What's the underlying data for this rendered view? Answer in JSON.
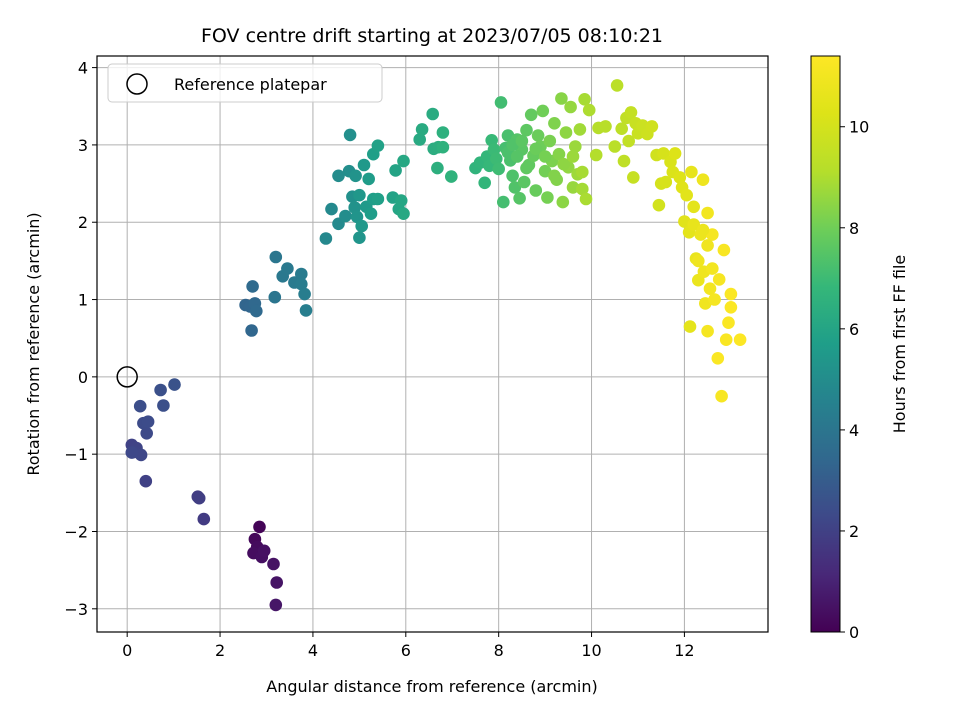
{
  "chart_data": {
    "type": "scatter",
    "title": "FOV centre drift starting at 2023/07/05 08:10:21",
    "xlabel": "Angular distance from reference (arcmin)",
    "ylabel": "Rotation from reference (arcmin)",
    "xlim": [
      -0.65,
      13.8
    ],
    "ylim": [
      -3.3,
      4.15
    ],
    "xticks": [
      0,
      2,
      4,
      6,
      8,
      10,
      12
    ],
    "yticks": [
      -3,
      -2,
      -1,
      0,
      1,
      2,
      3,
      4
    ],
    "grid": true,
    "legend": {
      "placement": "top-left",
      "entries": [
        "Reference platepar"
      ]
    },
    "reference_point": {
      "x": 0,
      "y": 0,
      "marker": "open-circle",
      "label": "Reference platepar"
    },
    "colorbar": {
      "label": "Hours from first FF file",
      "colormap": "viridis",
      "range": [
        0,
        11.4
      ],
      "ticks": [
        0,
        2,
        4,
        6,
        8,
        10
      ]
    },
    "points": [
      {
        "x": 2.85,
        "y": -1.94,
        "c": 0.1
      },
      {
        "x": 2.75,
        "y": -2.1,
        "c": 0.2
      },
      {
        "x": 2.8,
        "y": -2.2,
        "c": 0.3
      },
      {
        "x": 2.72,
        "y": -2.28,
        "c": 0.35
      },
      {
        "x": 2.9,
        "y": -2.33,
        "c": 0.4
      },
      {
        "x": 2.95,
        "y": -2.25,
        "c": 0.45
      },
      {
        "x": 3.15,
        "y": -2.42,
        "c": 0.5
      },
      {
        "x": 3.22,
        "y": -2.66,
        "c": 0.55
      },
      {
        "x": 3.2,
        "y": -2.95,
        "c": 0.6
      },
      {
        "x": 1.65,
        "y": -1.84,
        "c": 1.8
      },
      {
        "x": 1.52,
        "y": -1.55,
        "c": 1.85
      },
      {
        "x": 1.55,
        "y": -1.57,
        "c": 1.9
      },
      {
        "x": 0.4,
        "y": -1.35,
        "c": 2.0
      },
      {
        "x": 0.1,
        "y": -0.88,
        "c": 2.05
      },
      {
        "x": 0.2,
        "y": -0.92,
        "c": 2.1
      },
      {
        "x": 0.15,
        "y": -0.97,
        "c": 2.15
      },
      {
        "x": 0.3,
        "y": -1.01,
        "c": 2.2
      },
      {
        "x": 0.1,
        "y": -0.98,
        "c": 2.25
      },
      {
        "x": 0.42,
        "y": -0.73,
        "c": 2.3
      },
      {
        "x": 0.35,
        "y": -0.6,
        "c": 2.35
      },
      {
        "x": 0.45,
        "y": -0.58,
        "c": 2.4
      },
      {
        "x": 0.28,
        "y": -0.38,
        "c": 2.45
      },
      {
        "x": 0.78,
        "y": -0.37,
        "c": 2.5
      },
      {
        "x": 0.72,
        "y": -0.17,
        "c": 2.55
      },
      {
        "x": 1.02,
        "y": -0.1,
        "c": 2.6
      },
      {
        "x": 2.55,
        "y": 0.93,
        "c": 3.3
      },
      {
        "x": 2.65,
        "y": 0.91,
        "c": 3.35
      },
      {
        "x": 2.68,
        "y": 0.6,
        "c": 3.4
      },
      {
        "x": 2.75,
        "y": 0.95,
        "c": 3.45
      },
      {
        "x": 2.78,
        "y": 0.85,
        "c": 3.5
      },
      {
        "x": 2.7,
        "y": 1.17,
        "c": 3.55
      },
      {
        "x": 3.18,
        "y": 1.03,
        "c": 4.0
      },
      {
        "x": 3.2,
        "y": 1.55,
        "c": 4.05
      },
      {
        "x": 3.35,
        "y": 1.3,
        "c": 4.1
      },
      {
        "x": 3.45,
        "y": 1.4,
        "c": 4.15
      },
      {
        "x": 3.6,
        "y": 1.22,
        "c": 4.2
      },
      {
        "x": 3.75,
        "y": 1.33,
        "c": 4.25
      },
      {
        "x": 3.75,
        "y": 1.2,
        "c": 4.3
      },
      {
        "x": 3.82,
        "y": 1.07,
        "c": 4.35
      },
      {
        "x": 3.85,
        "y": 0.86,
        "c": 4.4
      },
      {
        "x": 4.28,
        "y": 1.79,
        "c": 4.8
      },
      {
        "x": 4.4,
        "y": 2.17,
        "c": 4.85
      },
      {
        "x": 4.55,
        "y": 1.98,
        "c": 4.9
      },
      {
        "x": 4.55,
        "y": 2.6,
        "c": 4.95
      },
      {
        "x": 4.7,
        "y": 2.08,
        "c": 5.0
      },
      {
        "x": 4.78,
        "y": 2.66,
        "c": 5.05
      },
      {
        "x": 4.8,
        "y": 3.13,
        "c": 5.1
      },
      {
        "x": 4.85,
        "y": 2.33,
        "c": 5.15
      },
      {
        "x": 4.9,
        "y": 2.19,
        "c": 5.2
      },
      {
        "x": 4.92,
        "y": 2.6,
        "c": 5.25
      },
      {
        "x": 4.95,
        "y": 2.07,
        "c": 5.3
      },
      {
        "x": 5.0,
        "y": 1.8,
        "c": 5.35
      },
      {
        "x": 5.0,
        "y": 2.35,
        "c": 5.4
      },
      {
        "x": 5.05,
        "y": 1.95,
        "c": 5.45
      },
      {
        "x": 5.1,
        "y": 2.74,
        "c": 5.5
      },
      {
        "x": 5.15,
        "y": 2.2,
        "c": 5.55
      },
      {
        "x": 5.2,
        "y": 2.56,
        "c": 5.6
      },
      {
        "x": 5.25,
        "y": 2.11,
        "c": 5.65
      },
      {
        "x": 5.3,
        "y": 2.3,
        "c": 5.7
      },
      {
        "x": 5.3,
        "y": 2.88,
        "c": 5.75
      },
      {
        "x": 5.4,
        "y": 2.3,
        "c": 5.8
      },
      {
        "x": 5.4,
        "y": 2.99,
        "c": 5.85
      },
      {
        "x": 5.72,
        "y": 2.32,
        "c": 5.9
      },
      {
        "x": 5.78,
        "y": 2.67,
        "c": 5.95
      },
      {
        "x": 5.85,
        "y": 2.17,
        "c": 6.0
      },
      {
        "x": 5.9,
        "y": 2.28,
        "c": 6.05
      },
      {
        "x": 5.95,
        "y": 2.79,
        "c": 6.1
      },
      {
        "x": 5.95,
        "y": 2.11,
        "c": 6.15
      },
      {
        "x": 6.3,
        "y": 3.07,
        "c": 6.2
      },
      {
        "x": 6.35,
        "y": 3.2,
        "c": 6.25
      },
      {
        "x": 6.58,
        "y": 3.4,
        "c": 6.3
      },
      {
        "x": 6.6,
        "y": 2.95,
        "c": 6.35
      },
      {
        "x": 6.7,
        "y": 2.97,
        "c": 6.4
      },
      {
        "x": 6.68,
        "y": 2.7,
        "c": 6.45
      },
      {
        "x": 6.8,
        "y": 3.16,
        "c": 6.5
      },
      {
        "x": 6.8,
        "y": 2.97,
        "c": 6.55
      },
      {
        "x": 6.98,
        "y": 2.59,
        "c": 6.6
      },
      {
        "x": 7.5,
        "y": 2.7,
        "c": 6.65
      },
      {
        "x": 7.6,
        "y": 2.77,
        "c": 6.7
      },
      {
        "x": 7.7,
        "y": 2.51,
        "c": 6.75
      },
      {
        "x": 7.75,
        "y": 2.85,
        "c": 6.8
      },
      {
        "x": 7.8,
        "y": 2.73,
        "c": 6.85
      },
      {
        "x": 7.85,
        "y": 3.06,
        "c": 6.9
      },
      {
        "x": 7.9,
        "y": 2.94,
        "c": 6.95
      },
      {
        "x": 7.95,
        "y": 2.82,
        "c": 7.0
      },
      {
        "x": 8.0,
        "y": 2.69,
        "c": 7.05
      },
      {
        "x": 8.05,
        "y": 3.55,
        "c": 7.1
      },
      {
        "x": 8.1,
        "y": 2.26,
        "c": 7.15
      },
      {
        "x": 8.15,
        "y": 2.96,
        "c": 7.2
      },
      {
        "x": 8.2,
        "y": 3.12,
        "c": 7.25
      },
      {
        "x": 8.25,
        "y": 2.8,
        "c": 7.3
      },
      {
        "x": 8.3,
        "y": 2.6,
        "c": 7.35
      },
      {
        "x": 8.35,
        "y": 2.45,
        "c": 7.4
      },
      {
        "x": 8.4,
        "y": 3.07,
        "c": 7.45
      },
      {
        "x": 8.45,
        "y": 2.31,
        "c": 7.5
      },
      {
        "x": 8.5,
        "y": 2.94,
        "c": 7.55
      },
      {
        "x": 8.55,
        "y": 2.52,
        "c": 7.6
      },
      {
        "x": 8.6,
        "y": 3.19,
        "c": 7.65
      },
      {
        "x": 8.65,
        "y": 2.74,
        "c": 7.7
      },
      {
        "x": 8.7,
        "y": 3.39,
        "c": 7.75
      },
      {
        "x": 8.75,
        "y": 2.86,
        "c": 7.8
      },
      {
        "x": 8.8,
        "y": 2.41,
        "c": 7.85
      },
      {
        "x": 8.85,
        "y": 3.12,
        "c": 7.9
      },
      {
        "x": 8.9,
        "y": 2.98,
        "c": 7.95
      },
      {
        "x": 8.95,
        "y": 3.44,
        "c": 8.0
      },
      {
        "x": 9.0,
        "y": 2.66,
        "c": 8.05
      },
      {
        "x": 9.05,
        "y": 2.32,
        "c": 8.1
      },
      {
        "x": 9.1,
        "y": 3.05,
        "c": 8.15
      },
      {
        "x": 9.15,
        "y": 2.79,
        "c": 8.2
      },
      {
        "x": 9.2,
        "y": 3.28,
        "c": 8.25
      },
      {
        "x": 9.25,
        "y": 2.55,
        "c": 8.3
      },
      {
        "x": 9.3,
        "y": 2.88,
        "c": 8.35
      },
      {
        "x": 9.35,
        "y": 3.6,
        "c": 8.4
      },
      {
        "x": 9.38,
        "y": 2.26,
        "c": 8.45
      },
      {
        "x": 9.45,
        "y": 3.16,
        "c": 8.5
      },
      {
        "x": 9.5,
        "y": 2.71,
        "c": 8.55
      },
      {
        "x": 9.55,
        "y": 3.49,
        "c": 8.6
      },
      {
        "x": 9.6,
        "y": 2.45,
        "c": 8.65
      },
      {
        "x": 9.65,
        "y": 2.98,
        "c": 8.7
      },
      {
        "x": 9.7,
        "y": 2.62,
        "c": 8.75
      },
      {
        "x": 9.75,
        "y": 3.2,
        "c": 8.8
      },
      {
        "x": 9.8,
        "y": 2.43,
        "c": 8.85
      },
      {
        "x": 9.85,
        "y": 3.59,
        "c": 8.9
      },
      {
        "x": 9.88,
        "y": 2.3,
        "c": 8.95
      },
      {
        "x": 9.95,
        "y": 3.45,
        "c": 9.0
      },
      {
        "x": 8.2,
        "y": 2.9,
        "c": 7.3
      },
      {
        "x": 8.3,
        "y": 3.0,
        "c": 7.4
      },
      {
        "x": 8.4,
        "y": 2.85,
        "c": 7.5
      },
      {
        "x": 8.5,
        "y": 3.05,
        "c": 7.6
      },
      {
        "x": 8.6,
        "y": 2.7,
        "c": 7.7
      },
      {
        "x": 8.8,
        "y": 2.95,
        "c": 7.9
      },
      {
        "x": 9.0,
        "y": 2.85,
        "c": 8.1
      },
      {
        "x": 9.2,
        "y": 2.6,
        "c": 8.3
      },
      {
        "x": 9.4,
        "y": 2.75,
        "c": 8.5
      },
      {
        "x": 9.6,
        "y": 2.85,
        "c": 8.7
      },
      {
        "x": 9.8,
        "y": 2.65,
        "c": 8.9
      },
      {
        "x": 10.1,
        "y": 2.87,
        "c": 9.1
      },
      {
        "x": 10.15,
        "y": 3.22,
        "c": 9.15
      },
      {
        "x": 10.3,
        "y": 3.24,
        "c": 9.2
      },
      {
        "x": 10.5,
        "y": 2.98,
        "c": 9.25
      },
      {
        "x": 10.55,
        "y": 3.77,
        "c": 9.3
      },
      {
        "x": 10.65,
        "y": 3.21,
        "c": 9.35
      },
      {
        "x": 10.7,
        "y": 2.79,
        "c": 9.4
      },
      {
        "x": 10.75,
        "y": 3.35,
        "c": 9.45
      },
      {
        "x": 10.8,
        "y": 3.05,
        "c": 9.5
      },
      {
        "x": 10.85,
        "y": 3.42,
        "c": 9.55
      },
      {
        "x": 10.9,
        "y": 2.58,
        "c": 9.6
      },
      {
        "x": 10.95,
        "y": 3.28,
        "c": 9.65
      },
      {
        "x": 11.0,
        "y": 3.15,
        "c": 9.7
      },
      {
        "x": 11.1,
        "y": 3.25,
        "c": 9.75
      },
      {
        "x": 11.2,
        "y": 3.14,
        "c": 9.8
      },
      {
        "x": 11.3,
        "y": 3.24,
        "c": 9.85
      },
      {
        "x": 11.4,
        "y": 2.87,
        "c": 9.9
      },
      {
        "x": 11.45,
        "y": 2.22,
        "c": 9.95
      },
      {
        "x": 11.5,
        "y": 2.5,
        "c": 10.0
      },
      {
        "x": 11.55,
        "y": 2.89,
        "c": 10.05
      },
      {
        "x": 11.6,
        "y": 2.52,
        "c": 10.1
      },
      {
        "x": 11.7,
        "y": 2.78,
        "c": 10.15
      },
      {
        "x": 11.75,
        "y": 2.65,
        "c": 10.2
      },
      {
        "x": 11.8,
        "y": 2.89,
        "c": 10.25
      },
      {
        "x": 11.9,
        "y": 2.58,
        "c": 10.3
      },
      {
        "x": 11.95,
        "y": 2.45,
        "c": 10.35
      },
      {
        "x": 12.0,
        "y": 2.01,
        "c": 10.4
      },
      {
        "x": 12.05,
        "y": 2.35,
        "c": 10.45
      },
      {
        "x": 12.1,
        "y": 1.87,
        "c": 10.5
      },
      {
        "x": 12.12,
        "y": 0.65,
        "c": 10.55
      },
      {
        "x": 12.15,
        "y": 2.65,
        "c": 10.6
      },
      {
        "x": 12.2,
        "y": 1.97,
        "c": 10.65
      },
      {
        "x": 12.25,
        "y": 1.53,
        "c": 10.7
      },
      {
        "x": 12.3,
        "y": 1.25,
        "c": 10.75
      },
      {
        "x": 12.35,
        "y": 1.84,
        "c": 10.8
      },
      {
        "x": 12.4,
        "y": 2.55,
        "c": 10.85
      },
      {
        "x": 12.42,
        "y": 1.36,
        "c": 10.9
      },
      {
        "x": 12.45,
        "y": 0.95,
        "c": 10.95
      },
      {
        "x": 12.5,
        "y": 2.12,
        "c": 11.0
      },
      {
        "x": 12.55,
        "y": 1.14,
        "c": 11.05
      },
      {
        "x": 12.6,
        "y": 1.84,
        "c": 11.1
      },
      {
        "x": 12.65,
        "y": 1.0,
        "c": 11.12
      },
      {
        "x": 12.75,
        "y": 1.26,
        "c": 11.15
      },
      {
        "x": 12.8,
        "y": -0.25,
        "c": 11.2
      },
      {
        "x": 12.85,
        "y": 1.64,
        "c": 11.22
      },
      {
        "x": 12.9,
        "y": 0.48,
        "c": 11.25
      },
      {
        "x": 12.95,
        "y": 0.7,
        "c": 11.28
      },
      {
        "x": 13.0,
        "y": 1.07,
        "c": 11.3
      },
      {
        "x": 13.0,
        "y": 0.9,
        "c": 11.32
      },
      {
        "x": 13.2,
        "y": 0.48,
        "c": 11.35
      },
      {
        "x": 12.72,
        "y": 0.24,
        "c": 11.3
      },
      {
        "x": 12.5,
        "y": 0.59,
        "c": 11.1
      },
      {
        "x": 12.3,
        "y": 1.5,
        "c": 10.9
      },
      {
        "x": 12.5,
        "y": 1.7,
        "c": 10.95
      },
      {
        "x": 12.6,
        "y": 1.4,
        "c": 11.05
      },
      {
        "x": 12.2,
        "y": 2.2,
        "c": 10.5
      },
      {
        "x": 12.4,
        "y": 1.9,
        "c": 10.8
      }
    ]
  }
}
